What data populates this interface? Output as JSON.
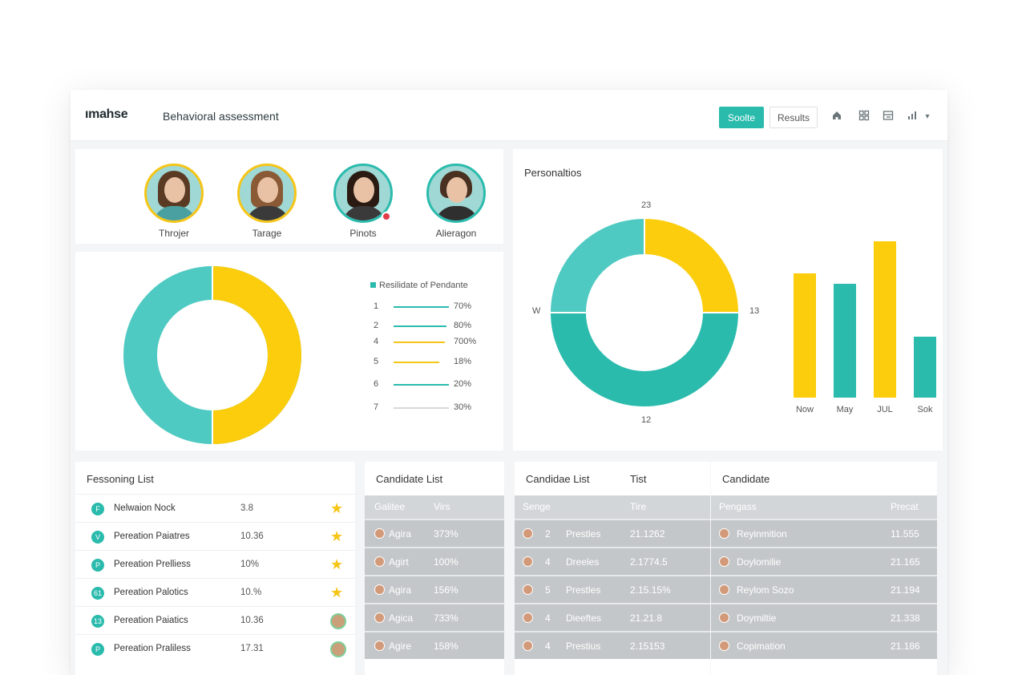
{
  "header": {
    "logo": "ımahse",
    "title": "Behavioral assessment",
    "btn_primary": "Soolte",
    "btn_secondary": "Results"
  },
  "people": [
    {
      "name": "Throjer",
      "ring": "#f5c518"
    },
    {
      "name": "Tarage",
      "ring": "#f5c518"
    },
    {
      "name": "Pinots",
      "ring": "#2bbbad",
      "notification": true
    },
    {
      "name": "Alieragon",
      "ring": "#2bbbad"
    }
  ],
  "donut_left": {
    "legend_title": "Resilidate of Pendante",
    "segments": [
      {
        "label": "teal",
        "value": 50,
        "color": "#4fcac2"
      },
      {
        "label": "yellow",
        "value": 50,
        "color": "#fbcd0c"
      }
    ],
    "legend": [
      {
        "num": "1",
        "pct": "70%",
        "color": "#2bbbad",
        "fill": 0.75
      },
      {
        "num": "2",
        "pct": "80%",
        "color": "#2bbbad",
        "fill": 0.72
      },
      {
        "num": "4",
        "pct": "700%",
        "color": "#f5c518",
        "fill": 0.7
      },
      {
        "num": "5",
        "pct": "18%",
        "color": "#f5c518",
        "fill": 0.62
      },
      {
        "num": "6",
        "pct": "20%",
        "color": "#2bbbad",
        "fill": 0.75
      },
      {
        "num": "7",
        "pct": "30%",
        "color": "#d6dadc",
        "fill": 0.75
      }
    ]
  },
  "personality": {
    "title": "Personaltios",
    "donut_labels": {
      "top": "23",
      "left": "W",
      "right": "13",
      "bottom": "12"
    }
  },
  "chart_data": [
    {
      "type": "pie",
      "title": "Personaltios",
      "categories": [
        "yellow",
        "teal-right",
        "teal-left"
      ],
      "values": [
        25,
        50,
        25
      ],
      "colors": [
        "#fbcd0c",
        "#2bbbad",
        "#4fcac2"
      ]
    },
    {
      "type": "bar",
      "categories": [
        "Now",
        "May",
        "JUL",
        "Sok"
      ],
      "values": [
        155,
        142,
        195,
        76
      ],
      "colors": [
        "#fbcd0c",
        "#2bbbad",
        "#fbcd0c",
        "#2bbbad"
      ]
    }
  ],
  "reasoning_list": {
    "title": "Fessoning List",
    "rows": [
      {
        "icon": "F",
        "name": "Nelwaion Nock",
        "score": "3.8",
        "mark": "star"
      },
      {
        "icon": "V",
        "name": "Pereation Paiatres",
        "score": "10.36",
        "mark": "star"
      },
      {
        "icon": "P",
        "name": "Pereation Prelliess",
        "score": "10%",
        "mark": "star"
      },
      {
        "icon": "61",
        "name": "Pereation Palotics",
        "score": "10.%",
        "mark": "star"
      },
      {
        "icon": "13",
        "name": "Pereation Paiatics",
        "score": "10.36",
        "mark": "avatar"
      },
      {
        "icon": "P",
        "name": "Pereation Praliless",
        "score": "17.31",
        "mark": "avatar"
      }
    ]
  },
  "candidate_list_a": {
    "title": "Candidate List",
    "head": [
      "Galitee",
      "Virs"
    ],
    "rows": [
      [
        "Agira",
        "373%"
      ],
      [
        "Agirt",
        "100%"
      ],
      [
        "Agira",
        "156%"
      ],
      [
        "Agica",
        "733%"
      ],
      [
        "Agire",
        "158%"
      ]
    ]
  },
  "candidate_list_b": {
    "title": "Candidae List",
    "title2": "Tist",
    "head": [
      "Senge",
      "Tire"
    ],
    "rows": [
      [
        "2",
        "Prestles",
        "21.1262"
      ],
      [
        "4",
        "Dreeles",
        "2.1774.5"
      ],
      [
        "5",
        "Prestles",
        "2.15.15%"
      ],
      [
        "4",
        "Dieeftes",
        "21.21.8"
      ],
      [
        "4",
        "Prestius",
        "2.15153"
      ]
    ]
  },
  "candidate_list_c": {
    "title": "Candidate",
    "head": [
      "Pengass",
      "Precat"
    ],
    "rows": [
      [
        "Reyinmition",
        "11.555"
      ],
      [
        "Doylomilie",
        "21.165"
      ],
      [
        "Reylom Sozo",
        "21.194"
      ],
      [
        "Doymiltie",
        "21.338"
      ],
      [
        "Copimation",
        "21.186"
      ]
    ]
  }
}
